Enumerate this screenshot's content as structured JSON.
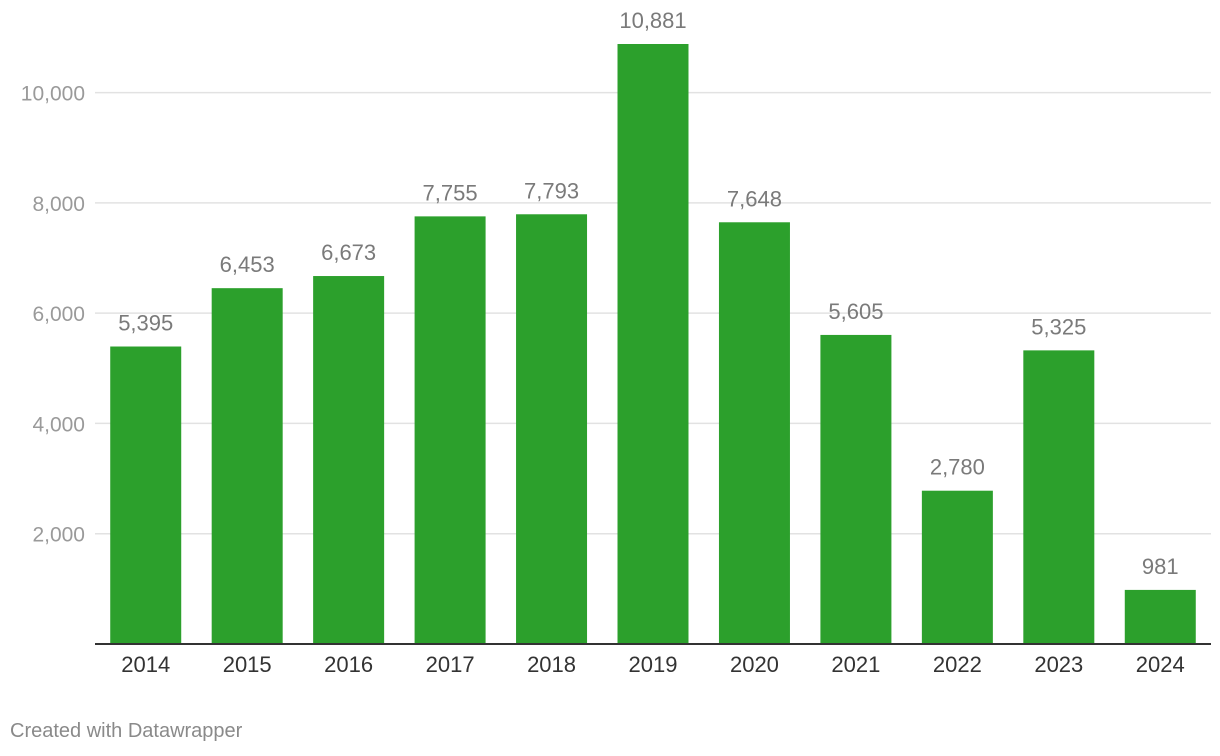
{
  "chart_data": {
    "type": "bar",
    "categories": [
      "2014",
      "2015",
      "2016",
      "2017",
      "2018",
      "2019",
      "2020",
      "2021",
      "2022",
      "2023",
      "2024"
    ],
    "values": [
      5395,
      6453,
      6673,
      7755,
      7793,
      10881,
      7648,
      5605,
      2780,
      5325,
      981
    ],
    "value_labels": [
      "5,395",
      "6,453",
      "6,673",
      "7,755",
      "7,793",
      "10,881",
      "7,648",
      "5,605",
      "2,780",
      "5,325",
      "981"
    ],
    "y_ticks": [
      2000,
      4000,
      6000,
      8000,
      10000
    ],
    "y_tick_labels": [
      "2,000",
      "4,000",
      "6,000",
      "8,000",
      "10,000"
    ],
    "ylim": [
      0,
      10881
    ],
    "grid": true,
    "bar_color": "#2ca02c",
    "title": "",
    "xlabel": "",
    "ylabel": ""
  },
  "footer": {
    "credit": "Created with Datawrapper"
  }
}
